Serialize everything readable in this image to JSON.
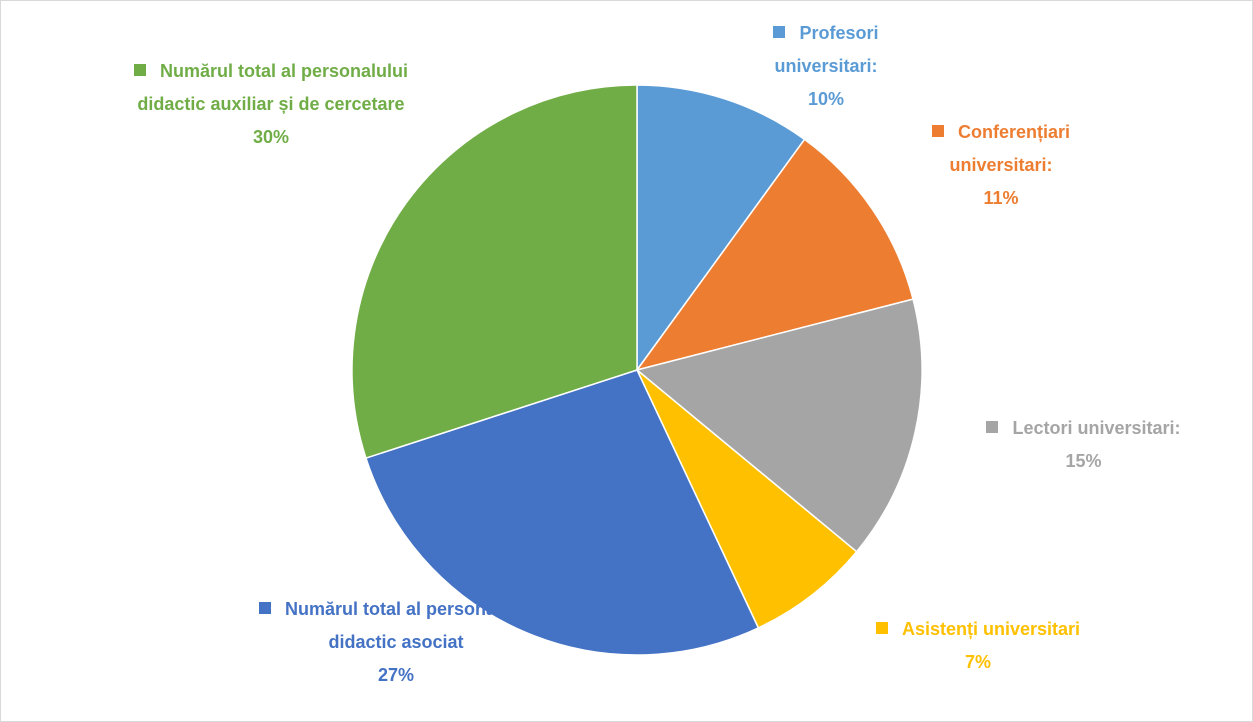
{
  "chart_data": {
    "type": "pie",
    "categories": [
      "Profesori universitari:",
      "Conferențiari universitari:",
      "Lectori universitari:",
      "Asistenți universitari",
      "Numărul total al personalului didactic asociat",
      "Numărul total al personalului didactic auxiliar și de cercetare"
    ],
    "values": [
      10,
      11,
      15,
      7,
      27,
      30
    ],
    "value_labels": [
      "10%",
      "11%",
      "15%",
      "7%",
      "27%",
      "30%"
    ],
    "colors": [
      "#5b9bd5",
      "#ed7d31",
      "#a5a5a5",
      "#ffc000",
      "#4472c4",
      "#70ad47"
    ]
  }
}
